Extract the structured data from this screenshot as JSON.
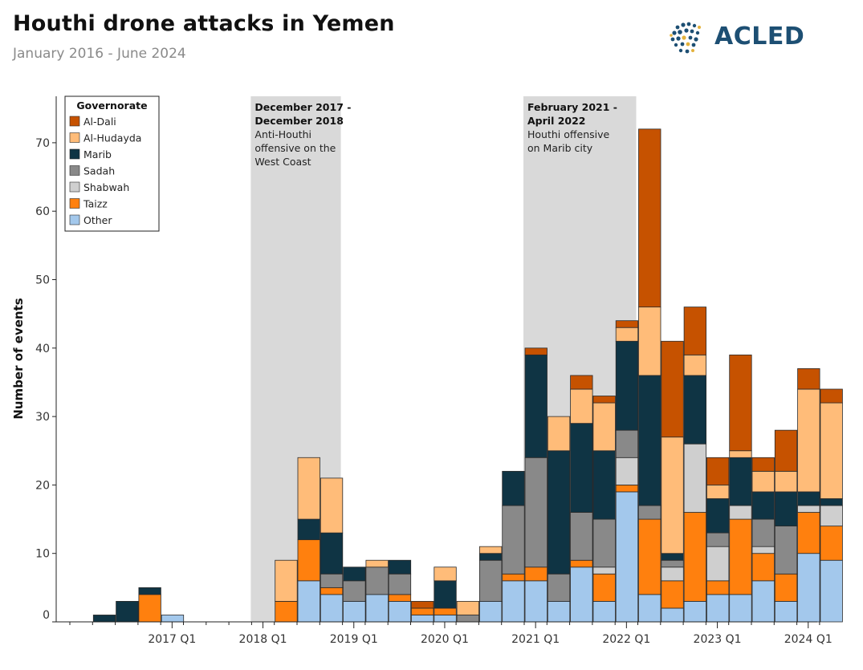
{
  "header": {
    "title": "Houthi drone attacks in Yemen",
    "subtitle": "January 2016 - June 2024",
    "logo_text": "ACLED"
  },
  "colors": {
    "Al-Dali": "#c65200",
    "Al-Hudayda": "#ffbc79",
    "Marib": "#0f3444",
    "Sadah": "#898989",
    "Shabwah": "#cfcfcf",
    "Taizz": "#ff800e",
    "Other": "#a3c8ec",
    "shade": "#d9d9d9",
    "logo": "#1d4f73"
  },
  "chart_data": {
    "type": "bar",
    "stacked": true,
    "title": "Houthi drone attacks in Yemen",
    "subtitle": "January 2016 - June 2024",
    "xlabel": "",
    "ylabel": "Number of events",
    "ylim": [
      0,
      75
    ],
    "yticks": [
      0,
      10,
      20,
      30,
      40,
      50,
      60,
      70
    ],
    "legend_title": "Governorate",
    "legend_position": "top-left",
    "grid": false,
    "categories": [
      "2016 Q1",
      "2016 Q2",
      "2016 Q3",
      "2016 Q4",
      "2017 Q1",
      "2017 Q2",
      "2017 Q3",
      "2017 Q4",
      "2018 Q1",
      "2018 Q2",
      "2018 Q3",
      "2018 Q4",
      "2019 Q1",
      "2019 Q2",
      "2019 Q3",
      "2019 Q4",
      "2020 Q1",
      "2020 Q2",
      "2020 Q3",
      "2020 Q4",
      "2021 Q1",
      "2021 Q2",
      "2021 Q3",
      "2021 Q4",
      "2022 Q1",
      "2022 Q2",
      "2022 Q3",
      "2022 Q4",
      "2023 Q1",
      "2023 Q2",
      "2023 Q3",
      "2023 Q4",
      "2024 Q1",
      "2024 Q2"
    ],
    "x_tick_labels": [
      "2017 Q1",
      "2018 Q1",
      "2019 Q1",
      "2020 Q1",
      "2021 Q1",
      "2022 Q1",
      "2023 Q1",
      "2024 Q1"
    ],
    "series": [
      {
        "name": "Other",
        "values": [
          0,
          0,
          0,
          0,
          1,
          0,
          0,
          0,
          0,
          0,
          6,
          4,
          3,
          4,
          3,
          1,
          1,
          0,
          3,
          6,
          6,
          3,
          8,
          3,
          19,
          4,
          2,
          3,
          4,
          4,
          6,
          3,
          10,
          9
        ]
      },
      {
        "name": "Taizz",
        "values": [
          0,
          0,
          0,
          4,
          0,
          0,
          0,
          0,
          0,
          3,
          6,
          1,
          0,
          0,
          1,
          1,
          1,
          0,
          0,
          1,
          2,
          0,
          1,
          4,
          1,
          11,
          4,
          13,
          2,
          11,
          4,
          4,
          6,
          5
        ]
      },
      {
        "name": "Shabwah",
        "values": [
          0,
          0,
          0,
          0,
          0,
          0,
          0,
          0,
          0,
          0,
          0,
          0,
          0,
          0,
          0,
          0,
          0,
          0,
          0,
          0,
          0,
          0,
          0,
          1,
          4,
          0,
          2,
          10,
          5,
          2,
          1,
          0,
          1,
          3
        ]
      },
      {
        "name": "Sadah",
        "values": [
          0,
          0,
          0,
          0,
          0,
          0,
          0,
          0,
          0,
          0,
          0,
          2,
          3,
          4,
          3,
          0,
          0,
          1,
          6,
          10,
          16,
          4,
          7,
          7,
          4,
          2,
          1,
          0,
          2,
          0,
          4,
          7,
          0,
          0
        ]
      },
      {
        "name": "Marib",
        "values": [
          0,
          1,
          3,
          1,
          0,
          0,
          0,
          0,
          0,
          0,
          3,
          6,
          2,
          0,
          2,
          0,
          4,
          0,
          1,
          5,
          15,
          18,
          13,
          10,
          13,
          19,
          1,
          10,
          5,
          7,
          4,
          5,
          2,
          1
        ]
      },
      {
        "name": "Al-Hudayda",
        "values": [
          0,
          0,
          0,
          0,
          0,
          0,
          0,
          0,
          0,
          6,
          9,
          8,
          0,
          1,
          0,
          0,
          2,
          2,
          1,
          0,
          0,
          5,
          5,
          7,
          2,
          10,
          17,
          3,
          2,
          1,
          3,
          3,
          15,
          14
        ]
      },
      {
        "name": "Al-Dali",
        "values": [
          0,
          0,
          0,
          0,
          0,
          0,
          0,
          0,
          0,
          0,
          0,
          0,
          0,
          0,
          0,
          1,
          0,
          0,
          0,
          0,
          1,
          0,
          2,
          1,
          1,
          26,
          14,
          7,
          4,
          14,
          2,
          6,
          3,
          2
        ]
      }
    ],
    "annotations": [
      {
        "title": "December 2017 - December 2018",
        "title_lines": [
          "December 2017 -",
          "December 2018"
        ],
        "text_lines": [
          "Anti-Houthi",
          "offensive on the",
          "West Coast"
        ]
      },
      {
        "title": "February 2021 - April 2022",
        "title_lines": [
          "February 2021 -",
          "April 2022"
        ],
        "text_lines": [
          "Houthi offensive",
          "on Marib city"
        ]
      }
    ]
  }
}
